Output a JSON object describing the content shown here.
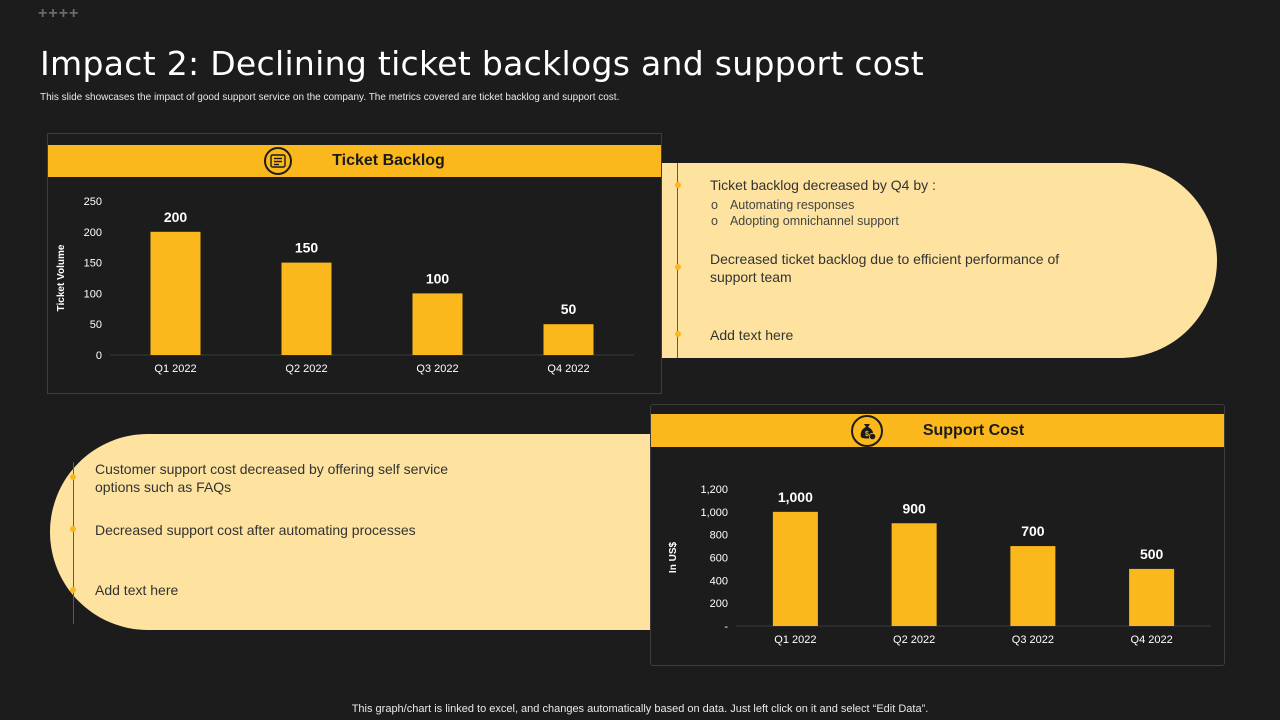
{
  "slide": {
    "corner_mark": "++++",
    "title": "Impact 2: Declining ticket backlogs and support cost",
    "subtitle": "This slide showcases the impact of good support service on the company. The metrics covered are ticket backlog and support cost.",
    "footer": "This graph/chart is linked to excel, and changes automatically based on data. Just left click on it and select “Edit Data”."
  },
  "backlog_card": {
    "header": "Ticket Backlog",
    "icon": "list-icon"
  },
  "cost_card": {
    "header": "Support Cost",
    "icon": "money-bag-icon"
  },
  "backlog_notes": {
    "point1": "Ticket backlog decreased by Q4 by :",
    "sub1": "Automating responses",
    "sub2": "Adopting omnichannel support",
    "sub_bullet": "o",
    "point2": "Decreased ticket backlog due to efficient performance of support team",
    "point3": "Add text here"
  },
  "cost_notes": {
    "point1": "Customer support cost decreased by offering self service options such as FAQs",
    "point2": "Decreased support cost after automating processes",
    "point3": "Add text here"
  },
  "colors": {
    "accent": "#fbb81c",
    "pill": "#fde39f",
    "background": "#1c1c1c"
  },
  "chart_data": [
    {
      "type": "bar",
      "title": "Ticket Backlog",
      "categories": [
        "Q1 2022",
        "Q2 2022",
        "Q3 2022",
        "Q4 2022"
      ],
      "values": [
        200,
        150,
        100,
        50
      ],
      "data_labels": [
        "200",
        "150",
        "100",
        "50"
      ],
      "ylabel": "Ticket Volume",
      "ylim": [
        0,
        250
      ],
      "yticks": [
        0,
        50,
        100,
        150,
        200,
        250
      ],
      "ytick_labels": [
        "0",
        "50",
        "100",
        "150",
        "200",
        "250"
      ],
      "grid": false
    },
    {
      "type": "bar",
      "title": "Support Cost",
      "categories": [
        "Q1 2022",
        "Q2 2022",
        "Q3 2022",
        "Q4 2022"
      ],
      "values": [
        1000,
        900,
        700,
        500
      ],
      "data_labels": [
        "1,000",
        "900",
        "700",
        "500"
      ],
      "ylabel": "In US$",
      "ylim": [
        0,
        1200
      ],
      "yticks": [
        0,
        200,
        400,
        600,
        800,
        1000,
        1200
      ],
      "ytick_labels": [
        "-",
        "200",
        "400",
        "600",
        "800",
        "1,000",
        "1,200"
      ],
      "grid": false
    }
  ]
}
